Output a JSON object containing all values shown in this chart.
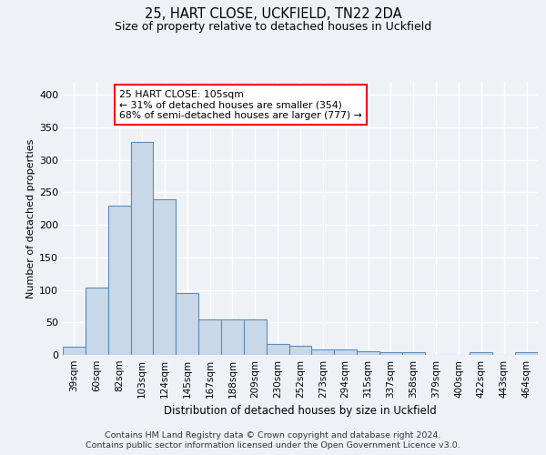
{
  "title1": "25, HART CLOSE, UCKFIELD, TN22 2DA",
  "title2": "Size of property relative to detached houses in Uckfield",
  "xlabel": "Distribution of detached houses by size in Uckfield",
  "ylabel": "Number of detached properties",
  "categories": [
    "39sqm",
    "60sqm",
    "82sqm",
    "103sqm",
    "124sqm",
    "145sqm",
    "167sqm",
    "188sqm",
    "209sqm",
    "230sqm",
    "252sqm",
    "273sqm",
    "294sqm",
    "315sqm",
    "337sqm",
    "358sqm",
    "379sqm",
    "400sqm",
    "422sqm",
    "443sqm",
    "464sqm"
  ],
  "values": [
    12,
    103,
    229,
    328,
    239,
    95,
    54,
    54,
    55,
    17,
    14,
    8,
    8,
    5,
    4,
    4,
    0,
    0,
    4,
    0,
    4
  ],
  "bar_color": "#c8d8e8",
  "bar_edge_color": "#5b8db8",
  "annotation_text": "25 HART CLOSE: 105sqm\n← 31% of detached houses are smaller (354)\n68% of semi-detached houses are larger (777) →",
  "annotation_box_color": "white",
  "annotation_box_edge": "red",
  "footer1": "Contains HM Land Registry data © Crown copyright and database right 2024.",
  "footer2": "Contains public sector information licensed under the Open Government Licence v3.0.",
  "ylim": [
    0,
    420
  ],
  "yticks": [
    0,
    50,
    100,
    150,
    200,
    250,
    300,
    350,
    400
  ],
  "background_color": "#eef2f7",
  "grid_color": "#ffffff"
}
